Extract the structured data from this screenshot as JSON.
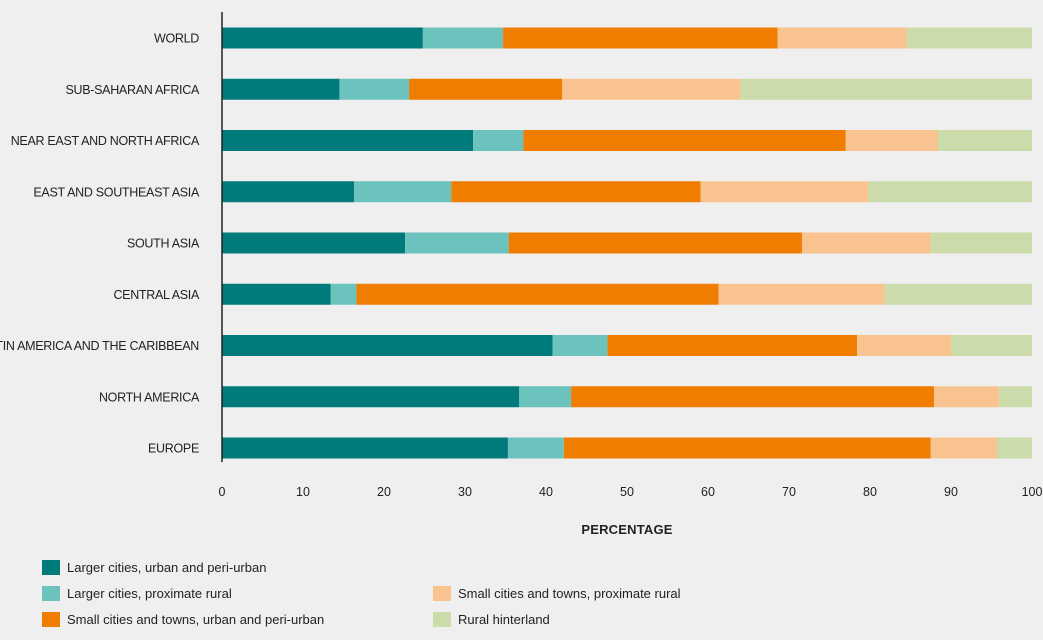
{
  "chart_data": {
    "type": "bar",
    "orientation": "horizontal",
    "stacked": true,
    "categories": [
      "WORLD",
      "SUB-SAHARAN AFRICA",
      "NEAR EAST AND NORTH AFRICA",
      "EAST AND SOUTHEAST ASIA",
      "SOUTH ASIA",
      "CENTRAL ASIA",
      "LATIN AMERICA AND THE CARIBBEAN",
      "NORTH AMERICA",
      "EUROPE"
    ],
    "series": [
      {
        "name": "Larger cities, urban and peri-urban",
        "color": "#007a7a",
        "values": [
          24.8,
          14.5,
          31.0,
          16.3,
          22.6,
          13.4,
          40.8,
          36.7,
          35.3
        ]
      },
      {
        "name": "Larger cities, proximate rural",
        "color": "#6cc3bd",
        "values": [
          9.9,
          8.6,
          6.2,
          12.0,
          12.8,
          3.2,
          6.8,
          6.4,
          6.9
        ]
      },
      {
        "name": "Small cities and towns, urban and peri-urban",
        "color": "#ef7d00",
        "values": [
          33.9,
          18.9,
          39.8,
          30.8,
          36.2,
          44.7,
          30.8,
          44.8,
          45.3
        ]
      },
      {
        "name": "Small cities and towns, proximate rural",
        "color": "#f9c38f",
        "values": [
          15.9,
          22.0,
          11.4,
          20.7,
          15.9,
          20.5,
          11.6,
          8.0,
          8.2
        ]
      },
      {
        "name": "Rural hinterland",
        "color": "#ccdbaa",
        "values": [
          15.5,
          36.0,
          11.6,
          20.2,
          12.5,
          18.2,
          10.0,
          4.1,
          4.3
        ]
      }
    ],
    "xlabel": "PERCENTAGE",
    "xlim": [
      0,
      100
    ],
    "xticks": [
      0,
      10,
      20,
      30,
      40,
      50,
      60,
      70,
      80,
      90,
      100
    ],
    "grid": false,
    "legend_position": "bottom"
  }
}
